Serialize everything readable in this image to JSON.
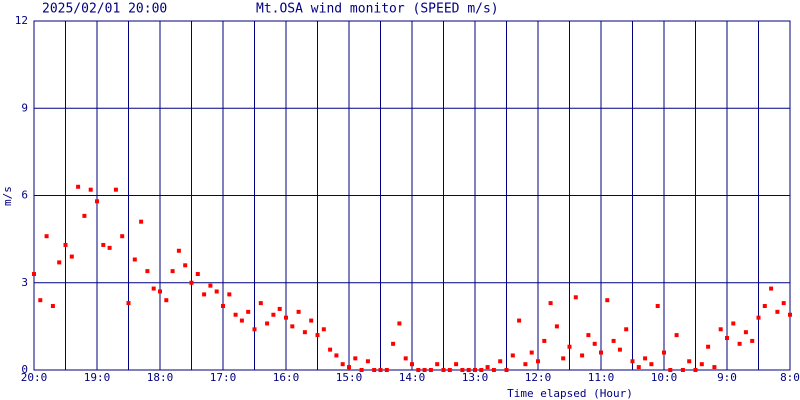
{
  "chart_data": {
    "type": "scatter",
    "date": "2025/02/01 20:00",
    "title": "Mt.OSA wind monitor (SPEED m/s)",
    "ylabel": "m/s",
    "xlabel": "Time elapsed (Hour)",
    "color": "#ff0000",
    "grid_color": "#000080",
    "grid": true,
    "xlim": [
      0,
      12
    ],
    "ylim": [
      0,
      12
    ],
    "yticks": [
      0,
      3,
      6,
      9,
      12
    ],
    "xticks": [
      {
        "value": 0,
        "label": "20:0"
      },
      {
        "value": 1,
        "label": "19:0"
      },
      {
        "value": 2,
        "label": "18:0"
      },
      {
        "value": 3,
        "label": "17:0"
      },
      {
        "value": 4,
        "label": "16:0"
      },
      {
        "value": 5,
        "label": "15:0"
      },
      {
        "value": 6,
        "label": "14:0"
      },
      {
        "value": 7,
        "label": "13:0"
      },
      {
        "value": 8,
        "label": "12:0"
      },
      {
        "value": 9,
        "label": "11:0"
      },
      {
        "value": 10,
        "label": "10:0"
      },
      {
        "value": 11,
        "label": "9:0"
      },
      {
        "value": 12,
        "label": "8:0"
      }
    ],
    "minor_xticks": [
      0.5,
      1.5,
      2.5,
      3.5,
      4.5,
      5.5,
      6.5,
      7.5,
      8.5,
      9.5,
      10.5,
      11.5
    ],
    "x": [
      0,
      0.1,
      0.2,
      0.3,
      0.4,
      0.5,
      0.6,
      0.7,
      0.8,
      0.9,
      1,
      1.1,
      1.2,
      1.3,
      1.4,
      1.5,
      1.6,
      1.7,
      1.8,
      1.9,
      2,
      2.1,
      2.2,
      2.3,
      2.4,
      2.5,
      2.6,
      2.7,
      2.8,
      2.9,
      3,
      3.1,
      3.2,
      3.3,
      3.4,
      3.5,
      3.6,
      3.7,
      3.8,
      3.9,
      4,
      4.1,
      4.2,
      4.3,
      4.4,
      4.5,
      4.6,
      4.7,
      4.8,
      4.9,
      5,
      5.1,
      5.2,
      5.3,
      5.4,
      5.5,
      5.6,
      5.7,
      5.8,
      5.9,
      6,
      6.1,
      6.2,
      6.3,
      6.4,
      6.5,
      6.6,
      6.7,
      6.8,
      6.9,
      7,
      7.1,
      7.2,
      7.3,
      7.4,
      7.5,
      7.6,
      7.7,
      7.8,
      7.9,
      8,
      8.1,
      8.2,
      8.3,
      8.4,
      8.5,
      8.6,
      8.7,
      8.8,
      8.9,
      9,
      9.1,
      9.2,
      9.3,
      9.4,
      9.5,
      9.6,
      9.7,
      9.8,
      9.9,
      10,
      10.1,
      10.2,
      10.3,
      10.4,
      10.5,
      10.6,
      10.7,
      10.8,
      10.9,
      11,
      11.1,
      11.2,
      11.3,
      11.4,
      11.5,
      11.6,
      11.7,
      11.8,
      11.9,
      12
    ],
    "values": [
      3.3,
      2.4,
      4.6,
      2.2,
      3.7,
      4.3,
      3.9,
      6.3,
      5.3,
      6.2,
      5.8,
      4.3,
      4.2,
      6.2,
      4.6,
      2.3,
      3.8,
      5.1,
      3.4,
      2.8,
      2.7,
      2.4,
      3.4,
      4.1,
      3.6,
      3.0,
      3.3,
      2.6,
      2.9,
      2.7,
      2.2,
      2.6,
      1.9,
      1.7,
      2.0,
      1.4,
      2.3,
      1.6,
      1.9,
      2.1,
      1.8,
      1.5,
      2.0,
      1.3,
      1.7,
      1.2,
      1.4,
      0.7,
      0.5,
      0.2,
      0.1,
      0.4,
      0,
      0.3,
      0,
      0,
      0,
      0.9,
      1.6,
      0.4,
      0.2,
      0,
      0,
      0,
      0.2,
      0,
      0,
      0.2,
      0,
      0,
      0,
      0,
      0.1,
      0,
      0.3,
      0,
      0.5,
      1.7,
      0.2,
      0.6,
      0.3,
      1.0,
      2.3,
      1.5,
      0.4,
      0.8,
      2.5,
      0.5,
      1.2,
      0.9,
      0.6,
      2.4,
      1.0,
      0.7,
      1.4,
      0.3,
      0.1,
      0.4,
      0.2,
      2.2,
      0.6,
      0,
      1.2,
      0,
      0.3,
      0,
      0.2,
      0.8,
      0.1,
      1.4,
      1.1,
      1.6,
      0.9,
      1.3,
      1.0,
      1.8,
      2.2,
      2.8,
      2.0,
      2.3,
      1.9
    ]
  }
}
